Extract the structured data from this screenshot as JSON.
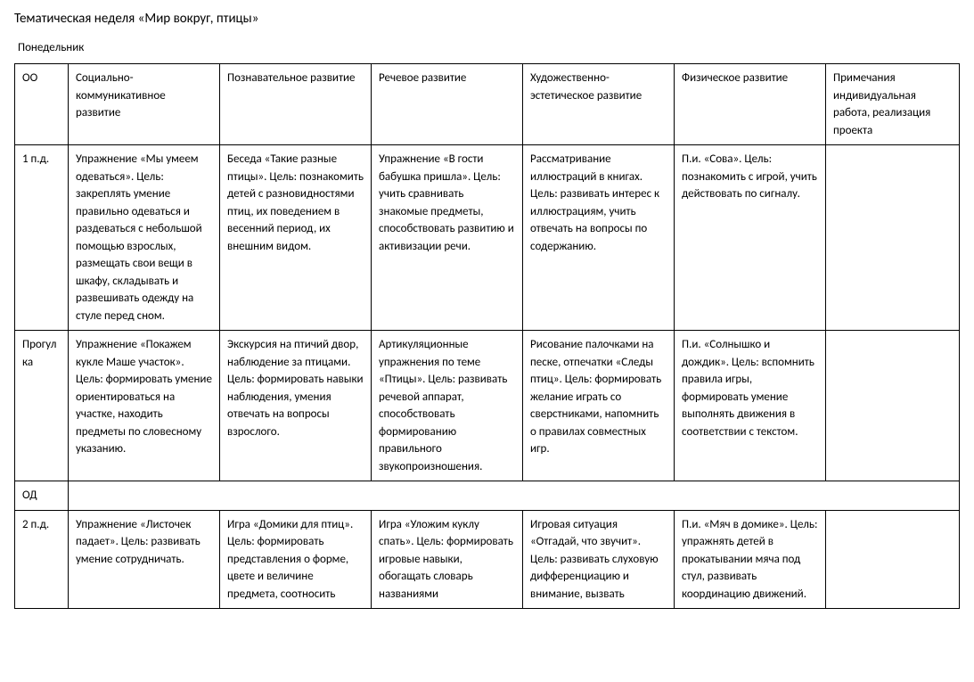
{
  "title": "Тематическая неделя «Мир вокруг, птицы»",
  "subtitle": "Понедельник",
  "columns": [
    "ОО",
    "Социально-коммуникативное развитие",
    "Познавательное развитие",
    "Речевое развитие",
    "Художественно-эстетическое развитие",
    "Физическое развитие",
    "Примечания индивидуальная работа, реализация проекта"
  ],
  "rows": [
    {
      "label": "1 п.д.",
      "cells": [
        "Упражнение «Мы умеем одеваться». Цель: закреплять умение правильно одеваться и раздеваться с небольшой помощью взрослых, размещать свои вещи в шкафу, складывать и развешивать одежду на стуле перед сном.",
        "Беседа «Такие разные птицы». Цель: познакомить детей с разновидностями птиц, их поведением в весенний период, их внешним видом.",
        "Упражнение «В гости бабушка пришла». Цель: учить сравнивать знакомые предметы, способствовать развитию и активизации речи.",
        "Рассматривание иллюстраций в книгах. Цель: развивать интерес к иллюстрациям, учить отвечать на вопросы по содержанию.",
        "П.и. «Сова». Цель: познакомить с игрой, учить действовать по сигналу.",
        ""
      ]
    },
    {
      "label": "Прогулка",
      "cells": [
        "Упражнение «Покажем кукле Маше участок». Цель: формировать умение ориентироваться на участке, находить предметы по словесному указанию.",
        "Экскурсия на птичий двор, наблюдение за птицами. Цель: формировать навыки наблюдения, умения отвечать на вопросы взрослого.",
        "Артикуляционные упражнения по теме «Птицы». Цель: развивать речевой аппарат, способствовать формированию правильного звукопроизношения.",
        "Рисование палочками на песке, отпечатки «Следы птиц». Цель: формировать желание играть со сверстниками, напомнить о правилах совместных игр.",
        "П.и. «Солнышко и дождик». Цель: вспомнить правила игры, формировать умение выполнять движения в соответствии с текстом.",
        ""
      ]
    },
    {
      "label": "ОД",
      "cells": [
        "",
        "",
        "",
        "",
        "",
        ""
      ],
      "span": true
    },
    {
      "label": "2 п.д.",
      "cells": [
        "Упражнение «Листочек падает». Цель: развивать умение сотрудничать.",
        "Игра «Домики для птиц». Цель: формировать представления о форме, цвете и величине предмета, соотносить",
        "Игра «Уложим куклу спать». Цель: формировать игровые навыки, обогащать словарь названиями",
        "Игровая ситуация «Отгадай, что звучит». Цель: развивать слуховую дифференциацию и внимание, вызвать",
        "П.и. «Мяч в домике». Цель: упражнять детей в прокатывании мяча под стул, развивать координацию движений.",
        ""
      ]
    }
  ]
}
